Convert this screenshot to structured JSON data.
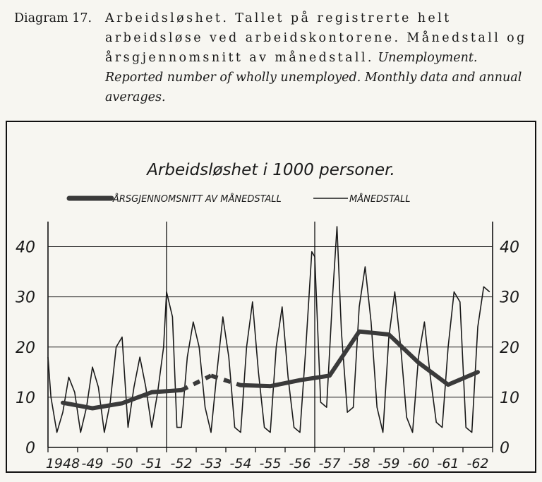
{
  "caption": {
    "label": "Diagram 17.",
    "norwegian": "Arbeidsløshet. Tallet på registrerte helt arbeidsløse ved arbeidskontorene. Månedstall og årsgjennomsnitt av månedstall.",
    "english": "Unemployment. Reported number of wholly unemployed. Monthly data and annual averages."
  },
  "chart_data": {
    "type": "line",
    "title": "Arbeidsløshet i 1000 personer.",
    "legend": {
      "placement": "top",
      "entries": [
        "ÅRSGJENNOMSNITT AV MÅNEDSTALL",
        "MÅNEDSTALL"
      ]
    },
    "xlim": [
      1948,
      1963
    ],
    "ylim": [
      0,
      45
    ],
    "yticks": [
      0,
      10,
      20,
      30,
      40
    ],
    "ytick_labels": [
      "0",
      "10",
      "20",
      "30",
      "40"
    ],
    "xtick_labels": [
      "1948",
      "-49",
      "-50",
      "-51",
      "-52",
      "-53",
      "-54",
      "-55",
      "-56",
      "-57",
      "-58",
      "-59",
      "-60",
      "-61",
      "-62"
    ],
    "grid": true,
    "vertical_markers": [
      1952,
      1957
    ],
    "series": [
      {
        "name": "ÅRSGJENNOMSNITT AV MÅNEDSTALL",
        "style": "thick",
        "x": [
          1948.5,
          1949.5,
          1950.5,
          1951.5,
          1952.5,
          1953.5,
          1954.5,
          1955.5,
          1956.5,
          1957.5,
          1958.5,
          1959.5,
          1960.5,
          1961.5,
          1962.5
        ],
        "y": [
          8.9,
          7.8,
          8.8,
          11.0,
          11.4,
          14.3,
          12.4,
          12.2,
          13.4,
          14.3,
          23.1,
          22.5,
          16.9,
          12.5,
          15.0
        ],
        "dashed_segment": [
          1952.5,
          1954.5
        ]
      },
      {
        "name": "MÅNEDSTALL",
        "style": "thin",
        "x": [
          1948.0,
          1948.1,
          1948.3,
          1948.5,
          1948.7,
          1948.9,
          1949.1,
          1949.3,
          1949.5,
          1949.7,
          1949.9,
          1950.1,
          1950.3,
          1950.5,
          1950.7,
          1950.9,
          1951.1,
          1951.3,
          1951.5,
          1951.7,
          1951.9,
          1952.0,
          1952.2,
          1952.35,
          1952.5,
          1952.7,
          1952.9,
          1953.1,
          1953.3,
          1953.5,
          1953.7,
          1953.9,
          1954.1,
          1954.3,
          1954.5,
          1954.7,
          1954.9,
          1955.1,
          1955.3,
          1955.5,
          1955.7,
          1955.9,
          1956.1,
          1956.3,
          1956.5,
          1956.7,
          1956.9,
          1957.0,
          1957.2,
          1957.4,
          1957.6,
          1957.75,
          1957.9,
          1958.1,
          1958.3,
          1958.5,
          1958.7,
          1958.9,
          1959.1,
          1959.3,
          1959.5,
          1959.7,
          1959.9,
          1960.1,
          1960.3,
          1960.5,
          1960.7,
          1960.9,
          1961.1,
          1961.3,
          1961.5,
          1961.7,
          1961.9,
          1962.1,
          1962.3,
          1962.5,
          1962.7,
          1962.9
        ],
        "y": [
          18,
          10,
          3,
          7,
          14,
          11,
          3,
          8,
          16,
          12,
          3,
          9,
          20,
          22,
          4,
          12,
          18,
          12,
          4,
          11,
          20,
          31,
          26,
          4,
          4,
          18,
          25,
          20,
          8,
          3,
          15,
          26,
          18,
          4,
          3,
          20,
          29,
          15,
          4,
          3,
          20,
          28,
          14,
          4,
          3,
          20,
          39,
          38,
          9,
          8,
          30,
          44,
          23,
          7,
          8,
          28,
          36,
          25,
          8,
          3,
          22,
          31,
          20,
          6,
          3,
          18,
          25,
          14,
          5,
          4,
          20,
          31,
          29,
          4,
          3,
          24,
          32,
          31
        ]
      }
    ]
  }
}
